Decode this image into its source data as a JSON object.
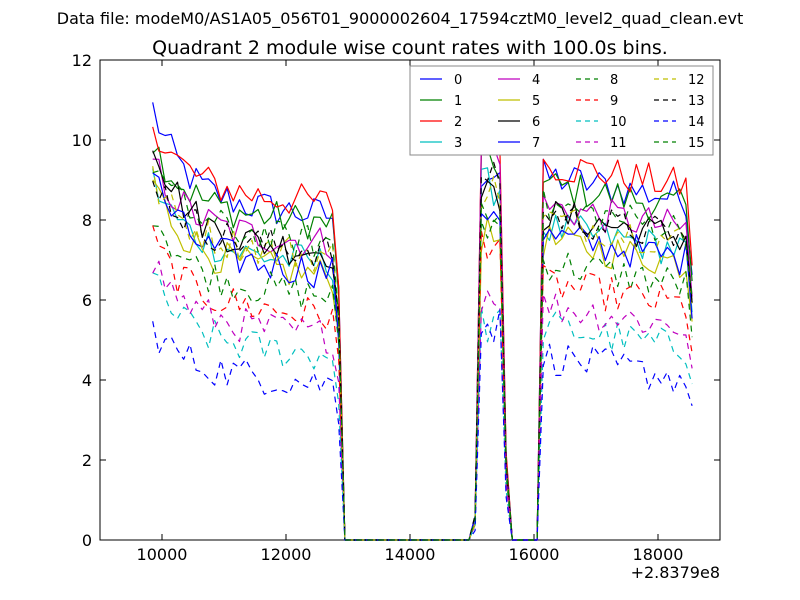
{
  "chart_data": {
    "type": "line",
    "suptitle": "Data file: modeM0/AS1A05_056T01_9000002604_17594cztM0_level2_quad_clean.evt",
    "title": "Quadrant 2 module wise count rates with 100.0s bins.",
    "xlabel": "",
    "ylabel": "",
    "x_offset_label": "+2.8379e8",
    "xlim": [
      9000,
      19000
    ],
    "ylim": [
      0,
      12
    ],
    "xticks": [
      10000,
      12000,
      14000,
      16000,
      18000
    ],
    "xtick_labels": [
      "10000",
      "12000",
      "14000",
      "16000",
      "18000"
    ],
    "yticks": [
      0,
      2,
      4,
      6,
      8,
      10,
      12
    ],
    "ytick_labels": [
      "0",
      "2",
      "4",
      "6",
      "8",
      10,
      "12"
    ],
    "x_start": 9850,
    "x_step": 100,
    "n_points": 88,
    "segments": [
      {
        "from": 9850,
        "to": 12750,
        "kind": "active"
      },
      {
        "from": 12850,
        "to": 12950,
        "kind": "drop"
      },
      {
        "from": 13050,
        "to": 14950,
        "kind": "zero"
      },
      {
        "from": 15050,
        "to": 15050,
        "kind": "rise"
      },
      {
        "from": 15150,
        "to": 15450,
        "kind": "active"
      },
      {
        "from": 15550,
        "to": 15650,
        "kind": "drop"
      },
      {
        "from": 15750,
        "to": 16050,
        "kind": "zero"
      },
      {
        "from": 16150,
        "to": 18550,
        "kind": "active"
      }
    ],
    "series": [
      {
        "name": "0",
        "color": "#0000ff",
        "style": "solid",
        "start": 10.8,
        "level": 8.5
      },
      {
        "name": "1",
        "color": "#008000",
        "style": "solid",
        "start": 10.0,
        "level": 8.3
      },
      {
        "name": "2",
        "color": "#ff0000",
        "style": "solid",
        "start": 10.5,
        "level": 8.8
      },
      {
        "name": "3",
        "color": "#00bfbf",
        "style": "solid",
        "start": 9.0,
        "level": 7.3
      },
      {
        "name": "4",
        "color": "#bf00bf",
        "style": "solid",
        "start": 9.5,
        "level": 7.8
      },
      {
        "name": "5",
        "color": "#bfbf00",
        "style": "solid",
        "start": 9.0,
        "level": 7.0
      },
      {
        "name": "6",
        "color": "#000000",
        "style": "solid",
        "start": 10.1,
        "level": 7.6
      },
      {
        "name": "7",
        "color": "#0000ff",
        "style": "solid",
        "start": 9.2,
        "level": 7.1
      },
      {
        "name": "8",
        "color": "#008000",
        "style": "dashed",
        "start": 8.3,
        "level": 6.5
      },
      {
        "name": "9",
        "color": "#ff0000",
        "style": "dashed",
        "start": 7.5,
        "level": 6.0
      },
      {
        "name": "10",
        "color": "#00bfbf",
        "style": "dashed",
        "start": 6.5,
        "level": 5.0
      },
      {
        "name": "11",
        "color": "#bf00bf",
        "style": "dashed",
        "start": 7.0,
        "level": 5.5
      },
      {
        "name": "12",
        "color": "#bfbf00",
        "style": "dashed",
        "start": 9.0,
        "level": 7.5
      },
      {
        "name": "13",
        "color": "#000000",
        "style": "dashed",
        "start": 9.2,
        "level": 7.6
      },
      {
        "name": "14",
        "color": "#0000ff",
        "style": "dashed",
        "start": 5.3,
        "level": 4.3
      },
      {
        "name": "15",
        "color": "#008000",
        "style": "dashed",
        "start": 9.5,
        "level": 7.8
      }
    ],
    "legend": {
      "placement": "top-right",
      "ncol": 4
    }
  }
}
